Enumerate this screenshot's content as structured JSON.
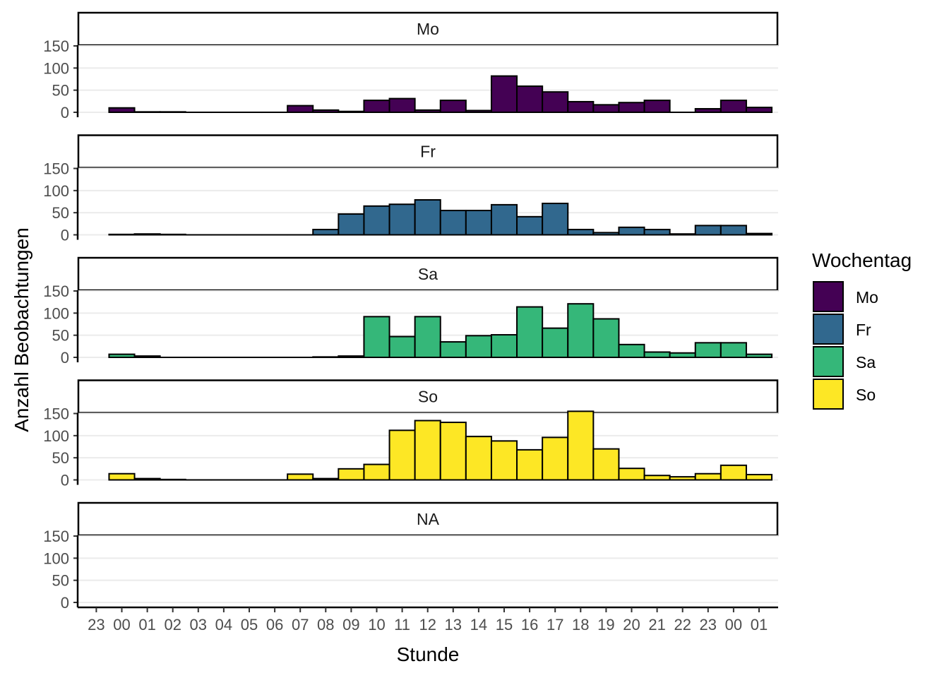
{
  "chart_data": {
    "type": "bar",
    "xlabel": "Stunde",
    "ylabel": "Anzahl Beobachtungen",
    "ylim": [
      0,
      150
    ],
    "y_ticks": [
      "0",
      "50",
      "100",
      "150"
    ],
    "x_tick_labels": [
      "23",
      "00",
      "01",
      "02",
      "03",
      "04",
      "05",
      "06",
      "07",
      "08",
      "09",
      "10",
      "11",
      "12",
      "13",
      "14",
      "15",
      "16",
      "17",
      "18",
      "19",
      "20",
      "21",
      "22",
      "23",
      "00",
      "01"
    ],
    "bin_labels": [
      "00",
      "01",
      "02",
      "03",
      "04",
      "05",
      "06",
      "07",
      "08",
      "09",
      "10",
      "11",
      "12",
      "13",
      "14",
      "15",
      "16",
      "17",
      "18",
      "19",
      "20",
      "21",
      "22",
      "23"
    ],
    "grid": "horizontal",
    "legend": {
      "title": "Wochentag",
      "position": "right",
      "entries": [
        "Mo",
        "Fr",
        "Sa",
        "So"
      ]
    },
    "facets": [
      {
        "name": "Mo",
        "color": "#440154",
        "values": [
          10,
          1,
          1,
          0,
          0,
          0,
          0,
          15,
          5,
          2,
          27,
          31,
          5,
          27,
          4,
          82,
          59,
          46,
          24,
          17,
          22,
          27,
          0,
          8,
          27,
          11
        ]
      },
      {
        "name": "Fr",
        "color": "#31688E",
        "values": [
          1,
          2,
          1,
          0,
          0,
          0,
          0,
          0,
          12,
          47,
          65,
          69,
          79,
          55,
          55,
          68,
          41,
          71,
          12,
          5,
          17,
          12,
          2,
          21,
          21,
          3
        ]
      },
      {
        "name": "Sa",
        "color": "#35B779",
        "values": [
          7,
          3,
          0,
          0,
          0,
          0,
          0,
          0,
          1,
          3,
          92,
          47,
          92,
          35,
          49,
          51,
          114,
          66,
          121,
          87,
          29,
          12,
          10,
          33,
          33,
          7
        ]
      },
      {
        "name": "So",
        "color": "#FDE725",
        "values": [
          14,
          3,
          1,
          0,
          0,
          0,
          0,
          13,
          3,
          25,
          35,
          112,
          134,
          130,
          98,
          88,
          68,
          96,
          155,
          70,
          26,
          10,
          7,
          14,
          33,
          12
        ]
      },
      {
        "name": "NA",
        "color": "#808080",
        "values": []
      }
    ]
  }
}
